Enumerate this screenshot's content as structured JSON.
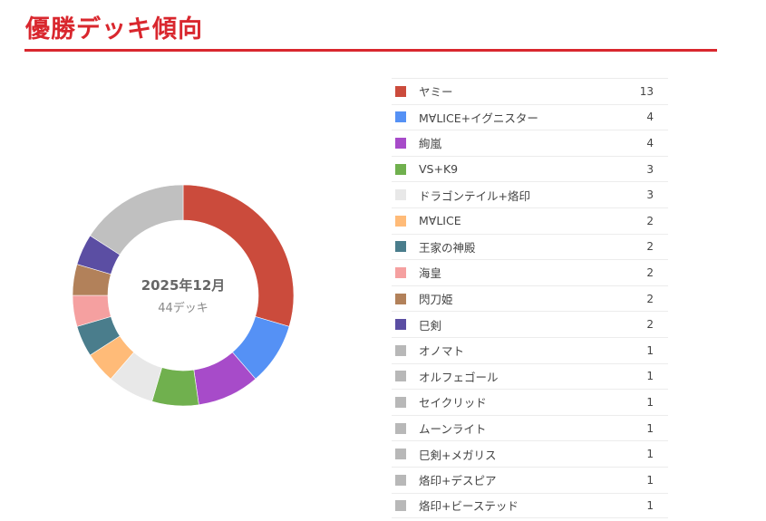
{
  "title": "優勝デッキ傾向",
  "center": {
    "month": "2025年12月",
    "count": "44デッキ"
  },
  "chart_data": {
    "type": "pie",
    "title": "",
    "categories": [
      "ヤミー",
      "M∀LICE+イグニスター",
      "絢嵐",
      "VS+K9",
      "ドラゴンテイル+烙印",
      "M∀LICE",
      "王家の神殿",
      "海皇",
      "閃刀姫",
      "巳剣",
      "オノマト",
      "オルフェゴール",
      "セイクリッド",
      "ムーンライト",
      "巳剣+メガリス",
      "烙印+デスピア",
      "烙印+ビーステッド"
    ],
    "values": [
      13,
      4,
      4,
      3,
      3,
      2,
      2,
      2,
      2,
      2,
      1,
      1,
      1,
      1,
      1,
      1,
      1
    ],
    "total": 44,
    "legend_placement": "right",
    "other_color": "#c0c0c0"
  },
  "legend": [
    {
      "label": "ヤミー",
      "value": "13",
      "color": "#cb4b3c"
    },
    {
      "label": "M∀LICE+イグニスター",
      "value": "4",
      "color": "#5591f5"
    },
    {
      "label": "絢嵐",
      "value": "4",
      "color": "#a74bc9"
    },
    {
      "label": "VS+K9",
      "value": "3",
      "color": "#70b04e"
    },
    {
      "label": "ドラゴンテイル+烙印",
      "value": "3",
      "color": "#e8e8e8"
    },
    {
      "label": "M∀LICE",
      "value": "2",
      "color": "#ffbb78"
    },
    {
      "label": "王家の神殿",
      "value": "2",
      "color": "#4a7d8c"
    },
    {
      "label": "海皇",
      "value": "2",
      "color": "#f5a0a0"
    },
    {
      "label": "閃刀姫",
      "value": "2",
      "color": "#b2815a"
    },
    {
      "label": "巳剣",
      "value": "2",
      "color": "#5b4ea3"
    },
    {
      "label": "オノマト",
      "value": "1",
      "color": "#b8b8b8"
    },
    {
      "label": "オルフェゴール",
      "value": "1",
      "color": "#b8b8b8"
    },
    {
      "label": "セイクリッド",
      "value": "1",
      "color": "#b8b8b8"
    },
    {
      "label": "ムーンライト",
      "value": "1",
      "color": "#b8b8b8"
    },
    {
      "label": "巳剣+メガリス",
      "value": "1",
      "color": "#b8b8b8"
    },
    {
      "label": "烙印+デスピア",
      "value": "1",
      "color": "#b8b8b8"
    },
    {
      "label": "烙印+ビーステッド",
      "value": "1",
      "color": "#b8b8b8"
    }
  ]
}
